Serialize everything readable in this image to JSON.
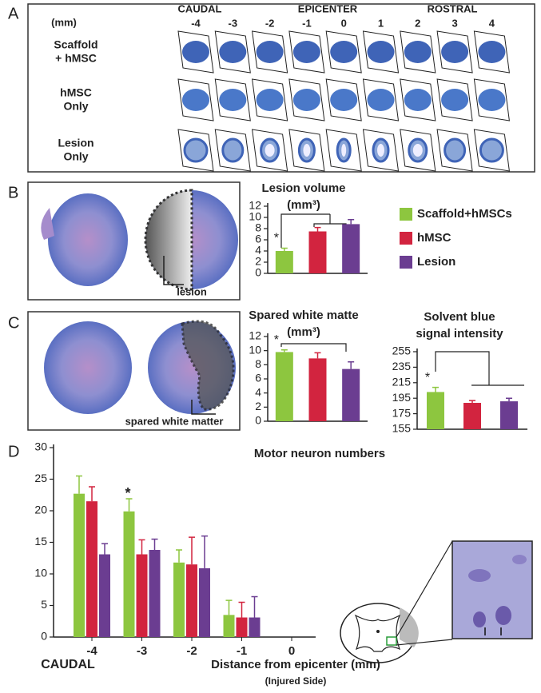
{
  "panel_labels": [
    "A",
    "B",
    "C",
    "D"
  ],
  "panel_a": {
    "unit": "(mm)",
    "regions": [
      "CAUDAL",
      "EPICENTER",
      "ROSTRAL"
    ],
    "positions": [
      "-4",
      "-3",
      "-2",
      "-1",
      "0",
      "1",
      "2",
      "3",
      "4"
    ],
    "rows": [
      [
        "Scaffold",
        "+ hMSC"
      ],
      [
        "hMSC",
        "Only"
      ],
      [
        "Lesion",
        "Only"
      ]
    ]
  },
  "image_labels": [
    "lesion",
    "spared white matter"
  ],
  "chart_data": [
    {
      "type": "bar",
      "title": "Lesion volume",
      "subtitle": "(mm³)",
      "ylim": [
        0,
        12
      ],
      "yticks": [
        0,
        2,
        4,
        6,
        8,
        10,
        12
      ],
      "series": [
        {
          "name": "Scaffold+hMSCs",
          "color": "#8dc63f",
          "values": [
            4.0
          ],
          "errors": [
            0.5
          ]
        },
        {
          "name": "hMSC",
          "color": "#d2243f",
          "values": [
            7.5
          ],
          "errors": [
            0.7
          ]
        },
        {
          "name": "Lesion",
          "color": "#6b3d91",
          "values": [
            8.8
          ],
          "errors": [
            0.8
          ]
        }
      ],
      "annotations": [
        "*"
      ]
    },
    {
      "type": "bar",
      "title": "Spared white matte",
      "subtitle": "(mm³)",
      "ylim": [
        0,
        12
      ],
      "yticks": [
        0,
        2,
        4,
        6,
        8,
        10,
        12
      ],
      "series": [
        {
          "color": "#8dc63f",
          "values": [
            9.8
          ],
          "errors": [
            0.3
          ]
        },
        {
          "color": "#d2243f",
          "values": [
            8.9
          ],
          "errors": [
            0.8
          ]
        },
        {
          "color": "#6b3d91",
          "values": [
            7.4
          ],
          "errors": [
            1.0
          ]
        }
      ],
      "annotations": [
        "*"
      ]
    },
    {
      "type": "bar",
      "title": "Solvent blue",
      "subtitle": "signal intensity",
      "ylim": [
        155,
        255
      ],
      "yticks": [
        155,
        175,
        195,
        215,
        235,
        255
      ],
      "series": [
        {
          "color": "#8dc63f",
          "values": [
            203
          ],
          "errors": [
            6
          ]
        },
        {
          "color": "#d2243f",
          "values": [
            189
          ],
          "errors": [
            3
          ]
        },
        {
          "color": "#6b3d91",
          "values": [
            191
          ],
          "errors": [
            4
          ]
        }
      ],
      "annotations": [
        "*"
      ]
    },
    {
      "type": "bar",
      "title": "Motor neuron numbers",
      "x_label": "Distance from epicenter (mm)",
      "x_note": "(Injured Side)",
      "x_side_label": "CAUDAL",
      "categories": [
        "-4",
        "-3",
        "-2",
        "-1",
        "0"
      ],
      "ylim": [
        0,
        30
      ],
      "yticks": [
        0,
        5,
        10,
        15,
        20,
        25,
        30
      ],
      "series": [
        {
          "color": "#8dc63f",
          "values": [
            22.7,
            19.9,
            11.8,
            3.5,
            null
          ],
          "errors": [
            2.8,
            2.0,
            2.0,
            2.3,
            null
          ]
        },
        {
          "color": "#d2243f",
          "values": [
            21.5,
            13.1,
            11.5,
            3.1,
            null
          ],
          "errors": [
            2.3,
            2.3,
            4.3,
            2.4,
            null
          ]
        },
        {
          "color": "#6b3d91",
          "values": [
            13.1,
            13.8,
            10.9,
            3.1,
            null
          ],
          "errors": [
            1.7,
            1.7,
            5.1,
            3.3,
            null
          ]
        }
      ],
      "annotations": [
        "*"
      ]
    }
  ]
}
